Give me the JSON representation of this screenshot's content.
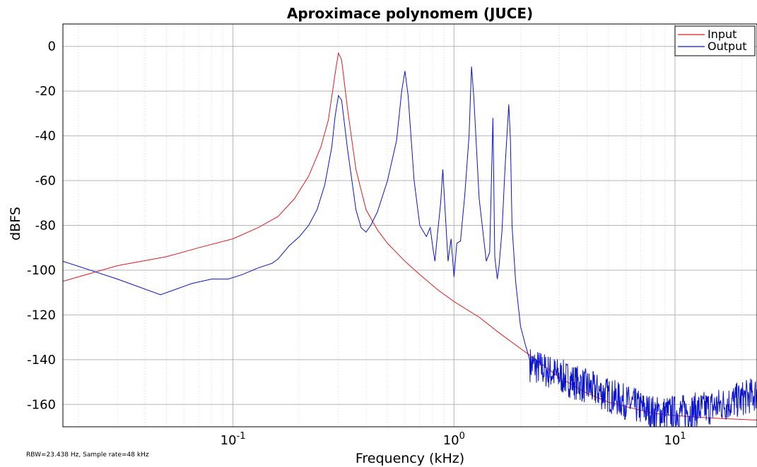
{
  "chart_data": {
    "type": "line",
    "title": "Aproximace polynomem (JUCE)",
    "xlabel": "Frequency (kHz)",
    "ylabel": "dBFS",
    "footnote": "RBW=23.438 Hz, Sample rate=48 kHz",
    "x_scale": "log",
    "xlim": [
      0.017,
      23.5
    ],
    "ylim": [
      -170,
      10
    ],
    "x_major_ticks": [
      {
        "value": 0.1,
        "base": "10",
        "exp": "-1"
      },
      {
        "value": 1,
        "base": "10",
        "exp": "0"
      },
      {
        "value": 10,
        "base": "10",
        "exp": "1"
      }
    ],
    "y_ticks": [
      {
        "value": 0,
        "label": "0"
      },
      {
        "value": -20,
        "label": "-20"
      },
      {
        "value": -40,
        "label": "-40"
      },
      {
        "value": -60,
        "label": "-60"
      },
      {
        "value": -80,
        "label": "-80"
      },
      {
        "value": -100,
        "label": "-100"
      },
      {
        "value": -120,
        "label": "-120"
      },
      {
        "value": -140,
        "label": "-140"
      },
      {
        "value": -160,
        "label": "-160"
      }
    ],
    "grid": true,
    "legend_position": "top-right",
    "series": [
      {
        "name": "Input",
        "color": "#e31a1c",
        "x": [
          0.017,
          0.03,
          0.05,
          0.07,
          0.1,
          0.13,
          0.16,
          0.19,
          0.22,
          0.25,
          0.27,
          0.29,
          0.3,
          0.31,
          0.33,
          0.36,
          0.4,
          0.45,
          0.5,
          0.6,
          0.7,
          0.85,
          1,
          1.3,
          1.6,
          2,
          2.5,
          3,
          4,
          5,
          6,
          8,
          10,
          14,
          23.5
        ],
        "y": [
          -105,
          -98,
          -94,
          -90,
          -86,
          -81,
          -76,
          -68,
          -58,
          -45,
          -33,
          -12,
          -3,
          -6,
          -28,
          -55,
          -73,
          -82,
          -88,
          -96,
          -102,
          -109,
          -114,
          -121,
          -128,
          -135,
          -142,
          -148,
          -155,
          -159,
          -161,
          -164,
          -165,
          -166,
          -167
        ]
      },
      {
        "name": "Output",
        "color": "#0a14d0",
        "x": [
          0.017,
          0.03,
          0.047,
          0.065,
          0.08,
          0.095,
          0.11,
          0.13,
          0.15,
          0.16,
          0.18,
          0.2,
          0.22,
          0.24,
          0.26,
          0.28,
          0.29,
          0.3,
          0.31,
          0.33,
          0.36,
          0.38,
          0.4,
          0.42,
          0.45,
          0.5,
          0.55,
          0.58,
          0.6,
          0.62,
          0.66,
          0.7,
          0.75,
          0.78,
          0.8,
          0.82,
          0.84,
          0.87,
          0.89,
          0.91,
          0.94,
          0.97,
          1.0,
          1.03,
          1.07,
          1.12,
          1.17,
          1.2,
          1.23,
          1.3,
          1.4,
          1.45,
          1.5,
          1.53,
          1.57,
          1.6,
          1.65,
          1.7,
          1.77,
          1.8,
          1.83,
          1.9,
          2.0,
          2.1,
          2.2
        ],
        "y": [
          -96,
          -104,
          -111,
          -106,
          -104,
          -104,
          -102,
          -99,
          -97,
          -95,
          -89,
          -85,
          -80,
          -73,
          -62,
          -45,
          -31,
          -22,
          -24,
          -46,
          -73,
          -81,
          -83,
          -80,
          -74,
          -60,
          -42,
          -20,
          -11,
          -22,
          -60,
          -80,
          -85,
          -81,
          -89,
          -96,
          -85,
          -70,
          -55,
          -72,
          -96,
          -86,
          -103,
          -88,
          -87,
          -66,
          -40,
          -9,
          -23,
          -68,
          -96,
          -92,
          -32,
          -94,
          -104,
          -98,
          -82,
          -55,
          -26,
          -41,
          -80,
          -105,
          -125,
          -133,
          -140
        ]
      }
    ],
    "noise_tail": {
      "series": "Output",
      "x_range": [
        2.2,
        23.5
      ],
      "level_at_start": -142,
      "level_min": -164,
      "level_at_end": -155,
      "spread": 10
    }
  }
}
